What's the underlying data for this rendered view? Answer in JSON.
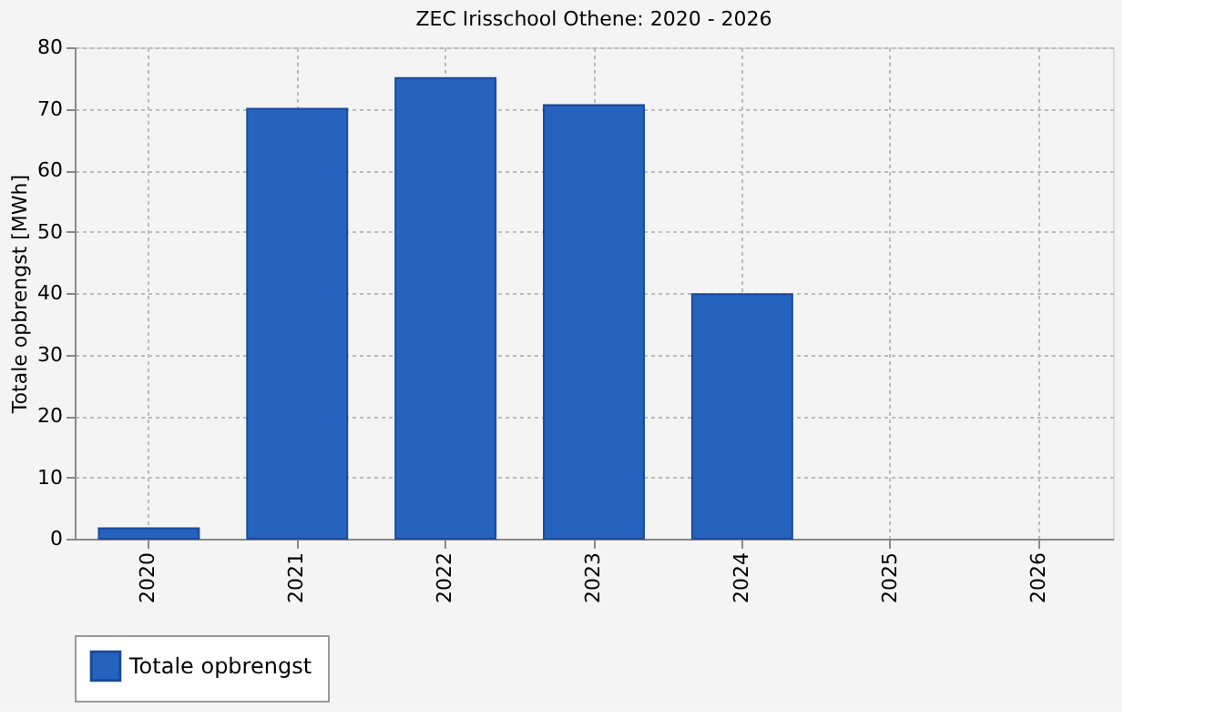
{
  "chart_data": {
    "type": "bar",
    "title": "ZEC Irisschool Othene: 2020 - 2026",
    "ylabel": "Totale opbrengst [MWh]",
    "categories": [
      "2020",
      "2021",
      "2022",
      "2023",
      "2024",
      "2025",
      "2026"
    ],
    "series": [
      {
        "name": "Totale opbrengst",
        "color": "#2563bf",
        "values": [
          1.7,
          70,
          75,
          70.6,
          39.8,
          null,
          null
        ]
      }
    ],
    "ylim": [
      0,
      80
    ],
    "yticks": [
      0,
      10,
      20,
      30,
      40,
      50,
      60,
      70,
      80
    ],
    "grid": true,
    "legend": "bottom"
  }
}
